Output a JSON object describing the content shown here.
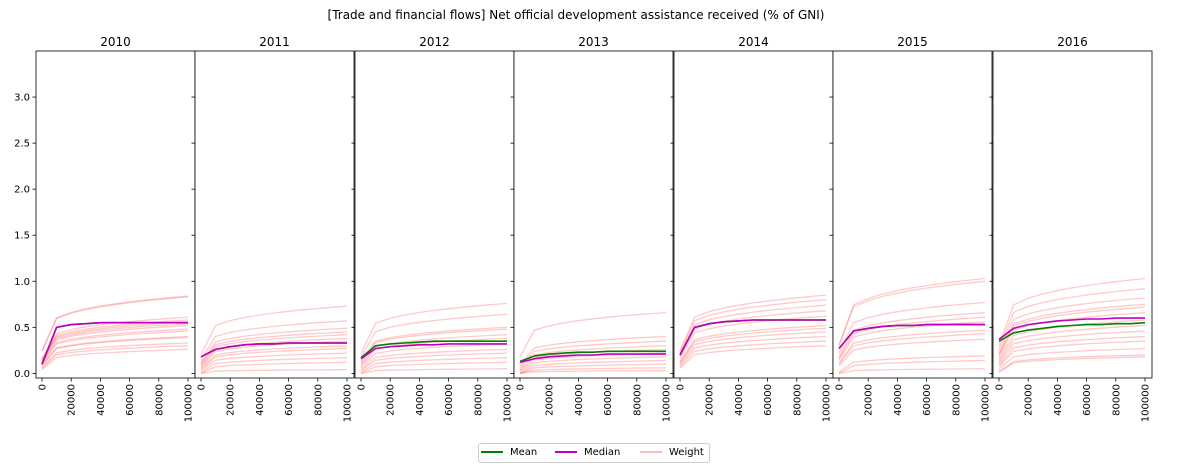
{
  "chart_data": {
    "type": "line",
    "title": "[Trade and financial flows] Net official development assistance received (% of GNI)",
    "panels": [
      "2010",
      "2011",
      "2012",
      "2013",
      "2014",
      "2015",
      "2016"
    ],
    "x_ticks": [
      "0",
      "20000",
      "40000",
      "60000",
      "80000",
      "100000"
    ],
    "xlim": [
      0,
      100000
    ],
    "y_ticks": [
      "0.0",
      "0.5",
      "1.0",
      "1.5",
      "2.0",
      "2.5",
      "3.0"
    ],
    "ylim": [
      -0.05,
      3.5
    ],
    "grid": false,
    "legend_position": "bottom-center",
    "legend": [
      "Mean",
      "Median",
      "Weight"
    ],
    "colors": {
      "mean": "#008000",
      "median": "#bf00bf",
      "weight": "#ff6666"
    },
    "x": [
      0,
      10000,
      20000,
      30000,
      40000,
      50000,
      60000,
      70000,
      80000,
      90000,
      100000
    ],
    "series": [
      {
        "name": "Mean",
        "panel_values": [
          [
            0.1,
            0.5,
            0.53,
            0.54,
            0.55,
            0.55,
            0.55,
            0.55,
            0.55,
            0.55,
            0.55
          ],
          [
            0.18,
            0.26,
            0.29,
            0.31,
            0.32,
            0.32,
            0.33,
            0.33,
            0.33,
            0.33,
            0.33
          ],
          [
            0.17,
            0.3,
            0.32,
            0.33,
            0.34,
            0.35,
            0.35,
            0.35,
            0.35,
            0.35,
            0.35
          ],
          [
            0.13,
            0.19,
            0.21,
            0.22,
            0.23,
            0.23,
            0.24,
            0.24,
            0.24,
            0.24,
            0.24
          ],
          [
            0.2,
            0.5,
            0.54,
            0.56,
            0.57,
            0.58,
            0.58,
            0.58,
            0.58,
            0.58,
            0.58
          ],
          [
            0.27,
            0.46,
            0.49,
            0.51,
            0.52,
            0.52,
            0.53,
            0.53,
            0.53,
            0.53,
            0.53
          ],
          [
            0.35,
            0.44,
            0.47,
            0.49,
            0.51,
            0.52,
            0.53,
            0.53,
            0.54,
            0.54,
            0.55
          ]
        ]
      },
      {
        "name": "Median",
        "panel_values": [
          [
            0.1,
            0.5,
            0.53,
            0.54,
            0.55,
            0.55,
            0.55,
            0.55,
            0.55,
            0.55,
            0.55
          ],
          [
            0.18,
            0.26,
            0.29,
            0.31,
            0.32,
            0.32,
            0.33,
            0.33,
            0.33,
            0.33,
            0.33
          ],
          [
            0.16,
            0.27,
            0.29,
            0.3,
            0.31,
            0.31,
            0.32,
            0.32,
            0.32,
            0.32,
            0.32
          ],
          [
            0.12,
            0.16,
            0.18,
            0.19,
            0.2,
            0.2,
            0.21,
            0.21,
            0.21,
            0.21,
            0.21
          ],
          [
            0.2,
            0.5,
            0.54,
            0.56,
            0.57,
            0.58,
            0.58,
            0.58,
            0.58,
            0.58,
            0.58
          ],
          [
            0.27,
            0.46,
            0.49,
            0.51,
            0.52,
            0.52,
            0.53,
            0.53,
            0.53,
            0.53,
            0.53
          ],
          [
            0.37,
            0.49,
            0.53,
            0.55,
            0.57,
            0.58,
            0.59,
            0.59,
            0.6,
            0.6,
            0.6
          ]
        ]
      },
      {
        "name": "Weight",
        "panel_endpoints": [
          [
            0.84,
            0.83,
            0.61,
            0.58,
            0.56,
            0.54,
            0.52,
            0.48,
            0.46,
            0.4,
            0.39,
            0.33,
            0.3,
            0.26
          ],
          [
            0.73,
            0.57,
            0.49,
            0.45,
            0.42,
            0.38,
            0.35,
            0.3,
            0.27,
            0.22,
            0.17,
            0.12,
            0.04
          ],
          [
            0.76,
            0.64,
            0.5,
            0.48,
            0.42,
            0.38,
            0.32,
            0.26,
            0.22,
            0.17,
            0.12,
            0.05
          ],
          [
            0.66,
            0.4,
            0.35,
            0.3,
            0.26,
            0.22,
            0.18,
            0.14,
            0.1,
            0.06,
            0.03
          ],
          [
            0.85,
            0.8,
            0.74,
            0.68,
            0.62,
            0.52,
            0.49,
            0.45,
            0.4,
            0.35,
            0.3
          ],
          [
            1.03,
            1.0,
            0.77,
            0.66,
            0.61,
            0.56,
            0.47,
            0.43,
            0.37,
            0.19,
            0.14,
            0.05
          ],
          [
            1.03,
            0.92,
            0.82,
            0.75,
            0.72,
            0.66,
            0.58,
            0.52,
            0.46,
            0.4,
            0.35,
            0.27,
            0.2,
            0.18
          ]
        ]
      }
    ]
  }
}
